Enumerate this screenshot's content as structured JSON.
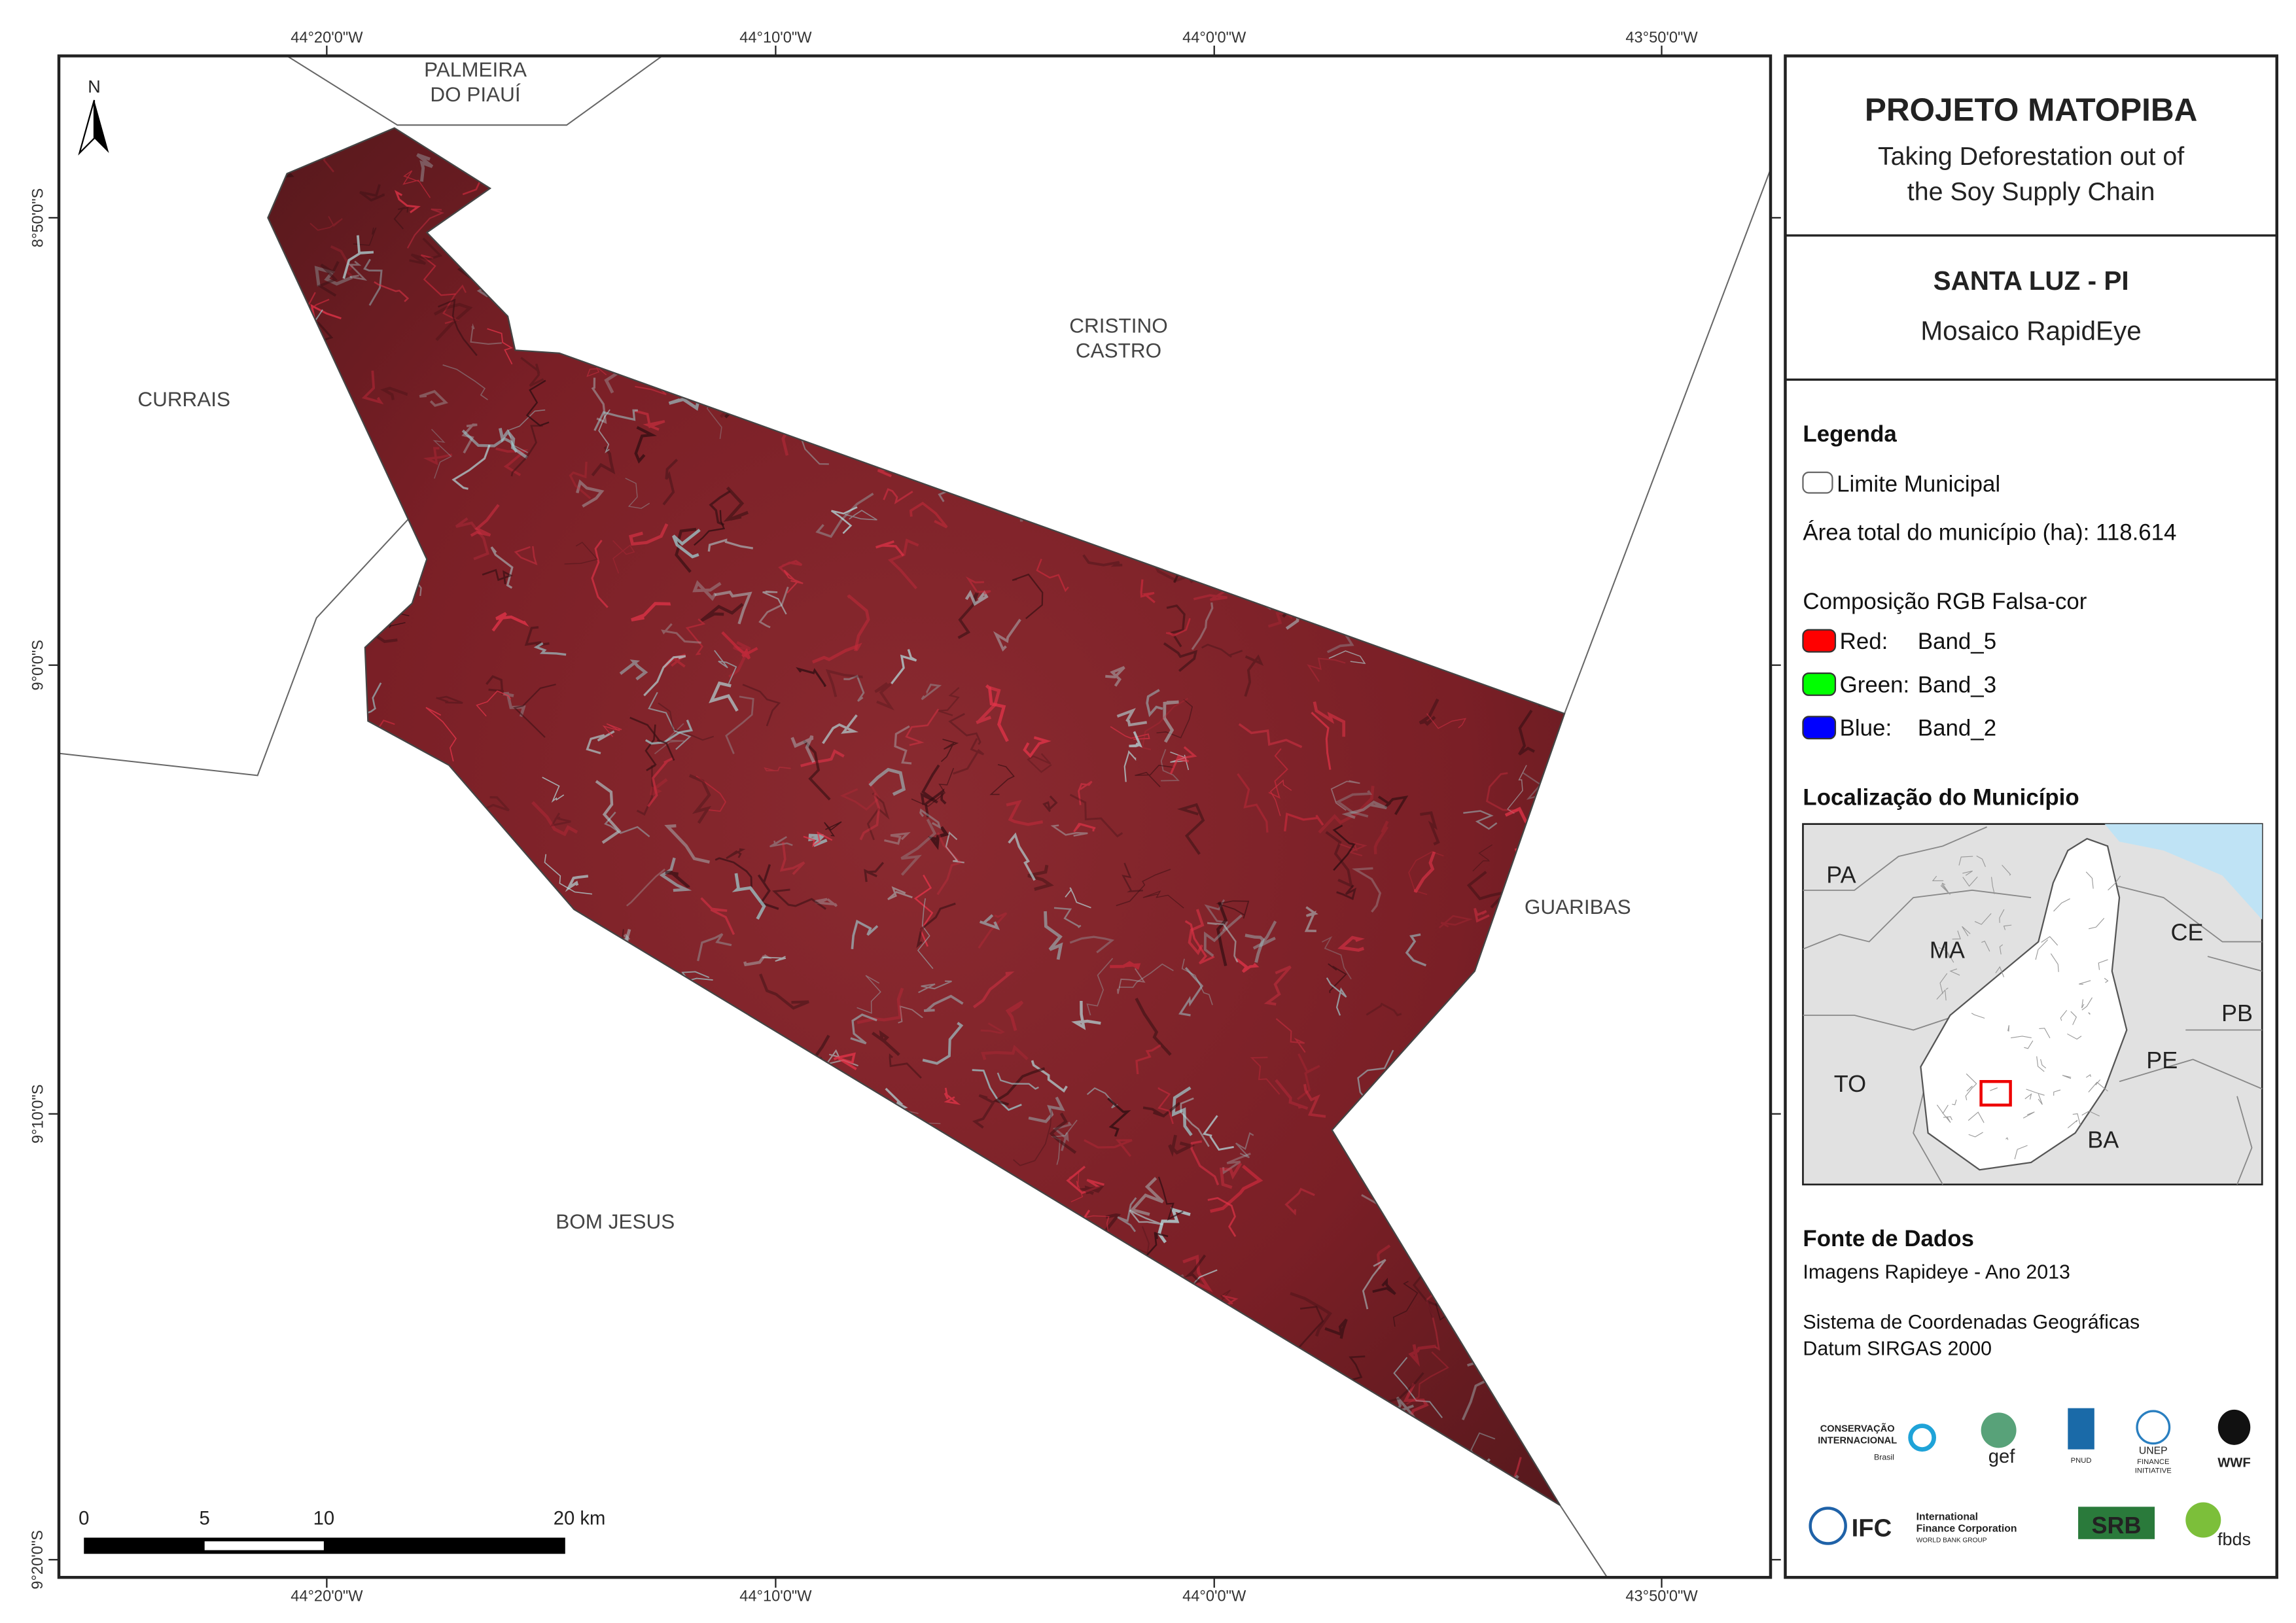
{
  "header": {
    "title": "PROJETO MATOPIBA",
    "subtitle": [
      "Taking Deforestation out of",
      "the Soy Supply Chain"
    ]
  },
  "municipality": {
    "name": "SANTA LUZ - PI",
    "mosaic": "Mosaico RapidEye"
  },
  "legend": {
    "heading": "Legenda",
    "boundary": "Limite Municipal",
    "area": "Área total do município (ha): 118.614",
    "composition": "Composição RGB Falsa-cor",
    "bands": [
      {
        "label": "Red:",
        "band": "Band_5",
        "color": "#ff0000"
      },
      {
        "label": "Green:",
        "band": "Band_3",
        "color": "#00ff00"
      },
      {
        "label": "Blue:",
        "band": "Band_2",
        "color": "#0000ff"
      }
    ]
  },
  "location": {
    "heading": "Localização do Município",
    "labels": [
      "PA",
      "MA",
      "CE",
      "PB",
      "TO",
      "PE",
      "BA"
    ]
  },
  "sources": {
    "heading": "Fonte de Dados",
    "imagery": "Imagens Rapideye - Ano 2013",
    "crs": [
      "Sistema de Coordenadas Geográficas",
      "Datum SIRGAS 2000"
    ]
  },
  "map": {
    "north": "N",
    "places": [
      [
        "PALMEIRA",
        "DO PIAUÍ"
      ],
      [
        "CRISTINO",
        "CASTRO"
      ],
      [
        "CURRAIS"
      ],
      [
        "GUARIBAS"
      ],
      [
        "BOM JESUS"
      ]
    ],
    "lon_labels": [
      "44°20'0\"W",
      "44°10'0\"W",
      "44°0'0\"W",
      "43°50'0\"W"
    ],
    "lat_labels": [
      "8°50'0\"S",
      "9°0'0\"S",
      "9°10'0\"S",
      "9°20'0\"S"
    ],
    "scale_labels": [
      "0",
      "5",
      "10",
      "20 km"
    ]
  },
  "logos": {
    "ci": [
      "CONSERVAÇÃO",
      "INTERNACIONAL",
      "Brasil"
    ],
    "gef": "gef",
    "pnud": "PNUD",
    "unep": [
      "UNEP",
      "FINANCE",
      "INITIATIVE"
    ],
    "wwf": "WWF",
    "ifc": [
      "IFC",
      "International",
      "Finance Corporation",
      "WORLD BANK GROUP"
    ],
    "srb": "SRB",
    "fbds": "fbds"
  }
}
